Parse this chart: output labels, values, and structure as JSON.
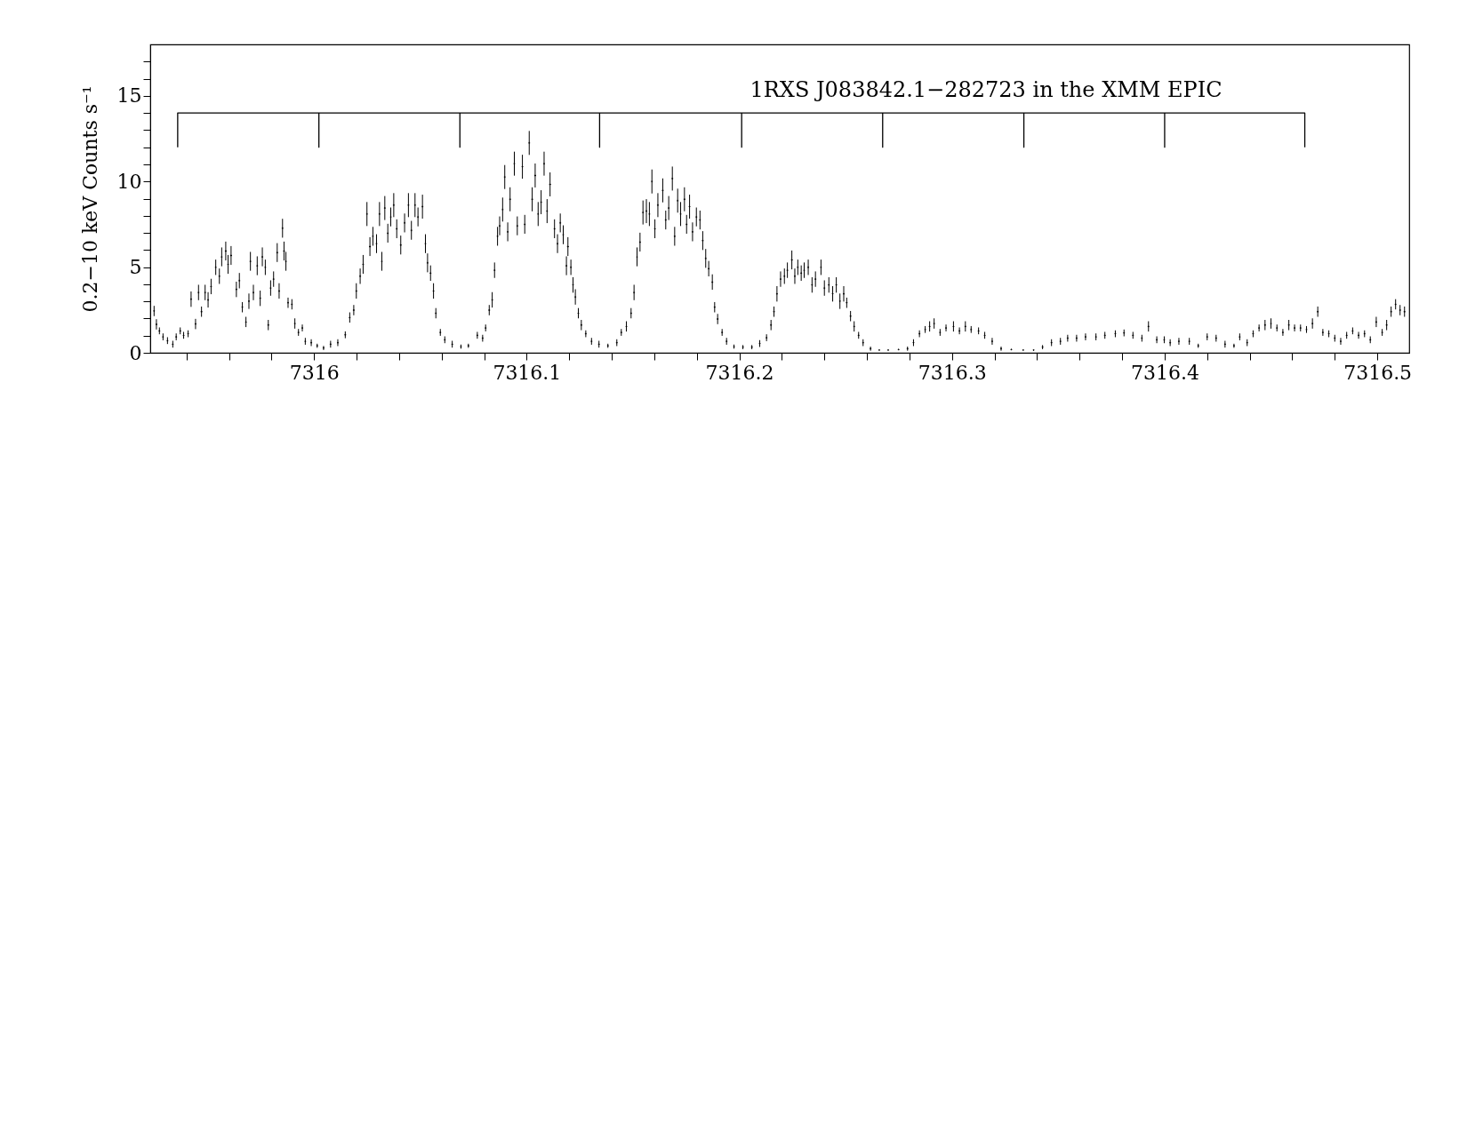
{
  "chart_data": {
    "type": "scatter",
    "ylabel": "0.2−10 keV Counts s⁻¹",
    "annotations": [
      "1RXS J083842.1−282723 in the XMM EPIC"
    ],
    "xlim": [
      7315.923,
      7316.515
    ],
    "ylim": [
      0,
      18
    ],
    "xticks": [
      {
        "value": 7315.94,
        "label": null
      },
      {
        "value": 7315.96,
        "label": null
      },
      {
        "value": 7315.98,
        "label": null
      },
      7316,
      {
        "value": 7316.02,
        "label": null
      },
      {
        "value": 7316.04,
        "label": null
      },
      {
        "value": 7316.06,
        "label": null
      },
      {
        "value": 7316.08,
        "label": null
      },
      7316.1,
      {
        "value": 7316.12,
        "label": null
      },
      {
        "value": 7316.14,
        "label": null
      },
      {
        "value": 7316.16,
        "label": null
      },
      {
        "value": 7316.18,
        "label": null
      },
      7316.2,
      {
        "value": 7316.22,
        "label": null
      },
      {
        "value": 7316.24,
        "label": null
      },
      {
        "value": 7316.26,
        "label": null
      },
      {
        "value": 7316.28,
        "label": null
      },
      7316.3,
      {
        "value": 7316.32,
        "label": null
      },
      {
        "value": 7316.34,
        "label": null
      },
      {
        "value": 7316.36,
        "label": null
      },
      {
        "value": 7316.38,
        "label": null
      },
      7316.4,
      {
        "value": 7316.42,
        "label": null
      },
      {
        "value": 7316.44,
        "label": null
      },
      {
        "value": 7316.46,
        "label": null
      },
      {
        "value": 7316.48,
        "label": null
      },
      7316.5
    ],
    "yticks": [
      0,
      {
        "value": 1,
        "label": null
      },
      {
        "value": 2,
        "label": null
      },
      {
        "value": 3,
        "label": null
      },
      {
        "value": 4,
        "label": null
      },
      5,
      {
        "value": 6,
        "label": null
      },
      {
        "value": 7,
        "label": null
      },
      {
        "value": 8,
        "label": null
      },
      {
        "value": 9,
        "label": null
      },
      10,
      {
        "value": 11,
        "label": null
      },
      {
        "value": 12,
        "label": null
      },
      {
        "value": 13,
        "label": null
      },
      {
        "value": 14,
        "label": null
      },
      15,
      {
        "value": 16,
        "label": null
      },
      {
        "value": 17,
        "label": null
      }
    ],
    "grid": false,
    "series": [
      {
        "color": "#000000",
        "marker": "cross",
        "x": [
          7315.9248,
          7315.9259,
          7315.9273,
          7315.929,
          7315.9311,
          7315.9336,
          7315.9352,
          7315.9371,
          7315.9387,
          7315.9408,
          7315.9422,
          7315.9443,
          7315.9457,
          7315.9471,
          7315.9488,
          7315.9502,
          7315.9516,
          7315.9538,
          7315.9555,
          7315.9566,
          7315.9585,
          7315.9596,
          7315.961,
          7315.9635,
          7315.9649,
          7315.9663,
          7315.968,
          7315.9694,
          7315.9701,
          7315.9715,
          7315.9733,
          7315.9747,
          7315.9757,
          7315.9771,
          7315.9785,
          7315.9796,
          7315.981,
          7315.9827,
          7315.9836,
          7315.9852,
          7315.9859,
          7315.9868,
          7315.9878,
          7315.9896,
          7315.991,
          7315.9927,
          7315.9945,
          7315.9959,
          7315.9987,
          7316.0015,
          7316.0045,
          7316.0078,
          7316.0112,
          7316.0147,
          7316.0168,
          7316.0187,
          7316.0199,
          7316.0217,
          7316.0231,
          7316.0249,
          7316.0263,
          7316.0277,
          7316.0294,
          7316.0308,
          7316.0319,
          7316.0333,
          7316.0347,
          7316.0361,
          7316.0375,
          7316.0389,
          7316.0408,
          7316.0426,
          7316.0444,
          7316.0458,
          7316.0475,
          7316.0489,
          7316.051,
          7316.0524,
          7316.0534,
          7316.0548,
          7316.0562,
          7316.0573,
          7316.0594,
          7316.0615,
          7316.065,
          7316.0691,
          7316.0726,
          7316.0768,
          7316.0793,
          7316.0807,
          7316.0824,
          7316.0838,
          7316.0849,
          7316.0863,
          7316.0873,
          7316.0887,
          7316.0897,
          7316.0911,
          7316.0922,
          7316.0942,
          7316.0956,
          7316.098,
          7316.0991,
          7316.1012,
          7316.1026,
          7316.104,
          7316.1054,
          7316.1068,
          7316.1082,
          7316.1096,
          7316.111,
          7316.1131,
          7316.1145,
          7316.1158,
          7316.1172,
          7316.1187,
          7316.1194,
          7316.1208,
          7316.1218,
          7316.1229,
          7316.1243,
          7316.1257,
          7316.1278,
          7316.1305,
          7316.134,
          7316.1382,
          7316.1424,
          7316.1445,
          7316.1469,
          7316.1491,
          7316.1505,
          7316.1519,
          7316.1533,
          7316.1547,
          7316.1563,
          7316.1577,
          7316.1589,
          7316.1603,
          7316.1617,
          7316.164,
          7316.1654,
          7316.1668,
          7316.1685,
          7316.1696,
          7316.171,
          7316.1724,
          7316.1742,
          7316.1752,
          7316.1766,
          7316.178,
          7316.1798,
          7316.1815,
          7316.1828,
          7316.1842,
          7316.1856,
          7316.1873,
          7316.1884,
          7316.1898,
          7316.1919,
          7316.194,
          7316.1975,
          7316.2017,
          7316.2059,
          7316.2096,
          7316.2128,
          7316.2149,
          7316.2163,
          7316.2177,
          7316.2194,
          7316.2212,
          7316.2226,
          7316.2247,
          7316.2261,
          7316.2275,
          7316.2291,
          7316.2305,
          7316.2324,
          7316.2342,
          7316.2358,
          7316.2384,
          7316.24,
          7316.2421,
          7316.2439,
          7316.2456,
          7316.2473,
          7316.2491,
          7316.2505,
          7316.2523,
          7316.254,
          7316.2561,
          7316.2582,
          7316.2617,
          7316.2658,
          7316.27,
          7316.2749,
          7316.2791,
          7316.2819,
          7316.2847,
          7316.2874,
          7316.2895,
          7316.2916,
          7316.2944,
          7316.2972,
          7316.3007,
          7316.3035,
          7316.3063,
          7316.309,
          7316.3125,
          7316.3154,
          7316.3189,
          7316.3231,
          7316.3279,
          7316.3335,
          7316.3384,
          7316.3426,
          7316.3468,
          7316.351,
          7316.3544,
          7316.3586,
          7316.3628,
          7316.3677,
          7316.3719,
          7316.3768,
          7316.3809,
          7316.3851,
          7316.3893,
          7316.3924,
          7316.3963,
          7316.3998,
          7316.4026,
          7316.4067,
          7316.4116,
          7316.4158,
          7316.42,
          7316.4242,
          7316.4284,
          7316.4326,
          7316.4353,
          7316.4388,
          7316.4416,
          7316.4444,
          7316.4472,
          7316.45,
          7316.4528,
          7316.4556,
          7316.4584,
          7316.4611,
          7316.4639,
          7316.4667,
          7316.4695,
          7316.472,
          7316.4744,
          7316.4772,
          7316.48,
          7316.4828,
          7316.4856,
          7316.4884,
          7316.4912,
          7316.494,
          7316.4967,
          7316.4995,
          7316.5023,
          7316.5044,
          7316.5065,
          7316.5086,
          7316.5107,
          7316.5128
        ],
        "values": [
          2.44,
          1.66,
          1.28,
          0.93,
          0.71,
          0.5,
          0.93,
          1.28,
          1.02,
          1.11,
          3.13,
          1.68,
          3.52,
          2.4,
          3.52,
          3.09,
          3.87,
          4.99,
          4.47,
          5.6,
          5.94,
          5.16,
          5.68,
          3.7,
          4.21,
          2.66,
          1.8,
          3.01,
          5.34,
          3.52,
          5.08,
          3.18,
          5.6,
          4.99,
          1.62,
          3.78,
          4.3,
          5.85,
          3.61,
          7.27,
          5.94,
          5.34,
          2.92,
          2.83,
          1.71,
          1.19,
          1.45,
          0.67,
          0.59,
          0.41,
          0.28,
          0.5,
          0.59,
          1.05,
          2.06,
          2.49,
          3.61,
          4.47,
          5.16,
          8.1,
          6.2,
          6.8,
          6.37,
          8.1,
          5.34,
          8.45,
          6.98,
          7.93,
          8.62,
          7.24,
          6.29,
          7.58,
          8.62,
          7.15,
          8.62,
          7.93,
          8.53,
          6.37,
          5.25,
          4.65,
          3.61,
          2.31,
          1.19,
          0.76,
          0.5,
          0.36,
          0.41,
          1.02,
          0.85,
          1.45,
          2.49,
          3.09,
          4.82,
          6.8,
          7.41,
          8.36,
          10.26,
          7.06,
          8.96,
          11.04,
          7.41,
          10.86,
          7.5,
          12.25,
          8.96,
          10.35,
          8.1,
          8.79,
          11.04,
          8.27,
          9.83,
          7.24,
          6.37,
          7.58,
          6.89,
          5.08,
          6.2,
          4.99,
          3.96,
          3.26,
          2.31,
          1.62,
          1.11,
          0.67,
          0.5,
          0.41,
          0.59,
          1.19,
          1.54,
          2.31,
          3.52,
          5.6,
          6.46,
          8.19,
          8.27,
          8.1,
          10.0,
          7.24,
          8.62,
          9.48,
          7.75,
          8.45,
          10.17,
          6.8,
          8.88,
          8.1,
          8.96,
          7.5,
          8.53,
          7.06,
          7.93,
          7.75,
          6.55,
          5.51,
          4.91,
          4.13,
          2.66,
          1.97,
          1.19,
          0.67,
          0.36,
          0.33,
          0.33,
          0.54,
          0.88,
          1.62,
          2.4,
          3.44,
          4.3,
          4.47,
          4.82,
          5.42,
          4.47,
          4.99,
          4.65,
          4.82,
          4.99,
          3.96,
          4.3,
          4.99,
          3.78,
          3.96,
          3.44,
          3.96,
          3.01,
          3.44,
          2.92,
          2.14,
          1.54,
          1.02,
          0.59,
          0.24,
          0.16,
          0.16,
          0.19,
          0.24,
          0.59,
          1.11,
          1.36,
          1.54,
          1.71,
          1.19,
          1.45,
          1.54,
          1.28,
          1.54,
          1.36,
          1.28,
          1.02,
          0.67,
          0.24,
          0.19,
          0.16,
          0.16,
          0.33,
          0.59,
          0.67,
          0.85,
          0.85,
          0.93,
          0.93,
          1.02,
          1.11,
          1.16,
          1.02,
          0.85,
          1.54,
          0.76,
          0.76,
          0.59,
          0.67,
          0.67,
          0.41,
          0.93,
          0.85,
          0.5,
          0.41,
          0.93,
          0.59,
          1.11,
          1.45,
          1.62,
          1.71,
          1.45,
          1.19,
          1.62,
          1.45,
          1.45,
          1.36,
          1.71,
          2.4,
          1.19,
          1.11,
          0.85,
          0.67,
          1.02,
          1.28,
          1.02,
          1.11,
          0.76,
          1.8,
          1.19,
          1.62,
          2.4,
          2.83,
          2.49,
          2.4
        ],
        "errors": [
          0.3,
          0.3,
          0.2,
          0.2,
          0.2,
          0.2,
          0.2,
          0.2,
          0.2,
          0.2,
          0.45,
          0.3,
          0.45,
          0.3,
          0.45,
          0.45,
          0.45,
          0.45,
          0.45,
          0.55,
          0.55,
          0.55,
          0.55,
          0.45,
          0.45,
          0.3,
          0.3,
          0.45,
          0.55,
          0.45,
          0.55,
          0.45,
          0.55,
          0.45,
          0.3,
          0.45,
          0.45,
          0.55,
          0.45,
          0.55,
          0.55,
          0.55,
          0.3,
          0.3,
          0.3,
          0.2,
          0.2,
          0.2,
          0.2,
          0.12,
          0.12,
          0.2,
          0.2,
          0.2,
          0.3,
          0.3,
          0.45,
          0.45,
          0.55,
          0.7,
          0.55,
          0.55,
          0.55,
          0.7,
          0.55,
          0.7,
          0.55,
          0.55,
          0.7,
          0.55,
          0.55,
          0.55,
          0.7,
          0.55,
          0.7,
          0.55,
          0.7,
          0.55,
          0.55,
          0.45,
          0.45,
          0.3,
          0.2,
          0.2,
          0.2,
          0.12,
          0.12,
          0.2,
          0.2,
          0.2,
          0.3,
          0.45,
          0.45,
          0.55,
          0.55,
          0.7,
          0.7,
          0.55,
          0.7,
          0.7,
          0.55,
          0.7,
          0.55,
          0.7,
          0.7,
          0.7,
          0.7,
          0.7,
          0.7,
          0.7,
          0.7,
          0.55,
          0.55,
          0.55,
          0.55,
          0.55,
          0.55,
          0.45,
          0.45,
          0.45,
          0.3,
          0.3,
          0.2,
          0.2,
          0.2,
          0.12,
          0.2,
          0.2,
          0.3,
          0.3,
          0.45,
          0.55,
          0.55,
          0.7,
          0.7,
          0.7,
          0.7,
          0.55,
          0.7,
          0.7,
          0.55,
          0.7,
          0.7,
          0.55,
          0.7,
          0.7,
          0.7,
          0.55,
          0.7,
          0.55,
          0.55,
          0.55,
          0.55,
          0.55,
          0.45,
          0.45,
          0.3,
          0.3,
          0.2,
          0.2,
          0.12,
          0.12,
          0.12,
          0.2,
          0.2,
          0.3,
          0.3,
          0.45,
          0.45,
          0.45,
          0.45,
          0.55,
          0.45,
          0.45,
          0.45,
          0.45,
          0.45,
          0.45,
          0.45,
          0.45,
          0.45,
          0.45,
          0.45,
          0.45,
          0.45,
          0.45,
          0.3,
          0.3,
          0.3,
          0.2,
          0.2,
          0.12,
          null,
          null,
          null,
          0.12,
          0.2,
          0.2,
          0.2,
          0.3,
          0.3,
          0.2,
          0.2,
          0.3,
          0.2,
          0.3,
          0.2,
          0.2,
          0.2,
          0.2,
          0.12,
          null,
          null,
          null,
          0.12,
          0.2,
          0.2,
          0.2,
          0.2,
          0.2,
          0.2,
          0.2,
          0.2,
          0.2,
          0.2,
          0.2,
          0.3,
          0.2,
          0.2,
          0.2,
          0.2,
          0.2,
          0.12,
          0.2,
          0.2,
          0.2,
          0.12,
          0.2,
          0.2,
          0.2,
          0.2,
          0.3,
          0.3,
          0.2,
          0.2,
          0.3,
          0.2,
          0.2,
          0.2,
          0.3,
          0.3,
          0.2,
          0.2,
          0.2,
          0.2,
          0.2,
          0.2,
          0.2,
          0.2,
          0.2,
          0.3,
          0.2,
          0.3,
          0.3,
          0.3,
          0.3,
          0.3
        ]
      },
      {
        "type": "line",
        "color": "#000000",
        "x": [
          7315.9359,
          7315.9359,
          7316.0023,
          7316.0023,
          7316.0023,
          7316.0686,
          7316.0686,
          7316.0686,
          7316.1343,
          7316.1343,
          7316.1343,
          7316.2011,
          7316.2011,
          7316.2011,
          7316.2674,
          7316.2674,
          7316.2674,
          7316.3338,
          7316.3338,
          7316.3338,
          7316.4,
          7316.4,
          7316.4,
          7316.4659,
          7316.4659
        ],
        "values": [
          12,
          14,
          14,
          12,
          14,
          14,
          12,
          14,
          14,
          12,
          14,
          14,
          12,
          14,
          14,
          12,
          14,
          14,
          12,
          14,
          14,
          12,
          14,
          14,
          12
        ]
      }
    ]
  }
}
